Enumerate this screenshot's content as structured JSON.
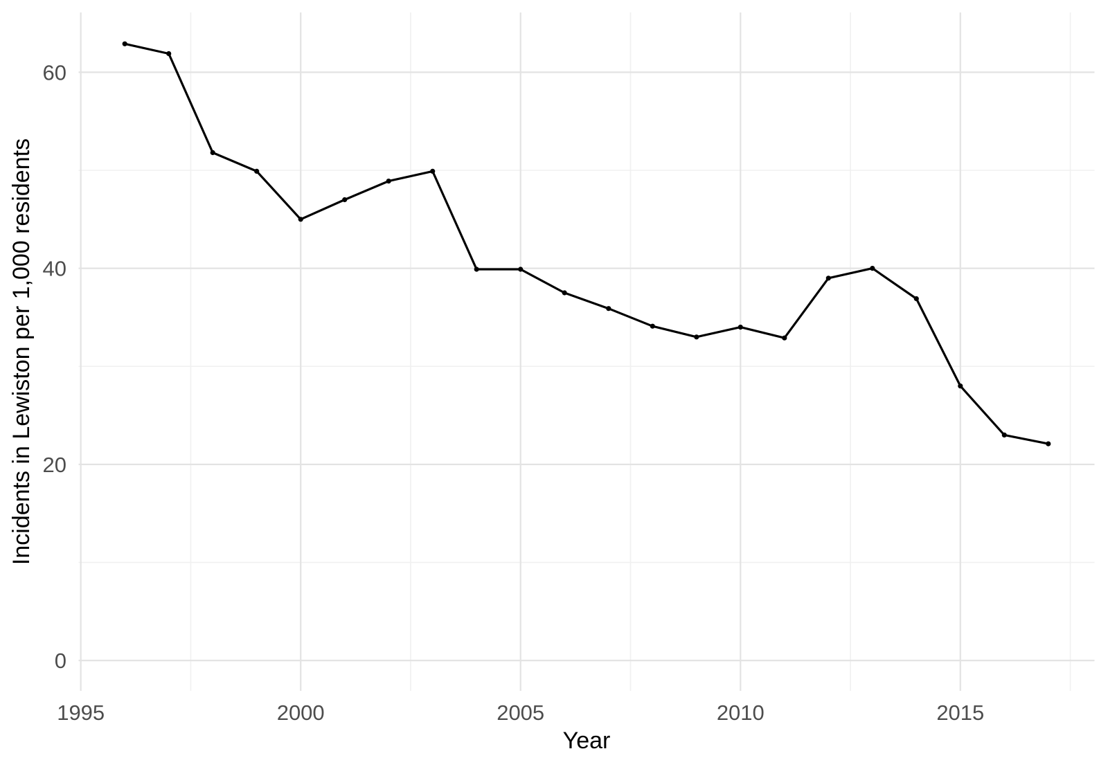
{
  "chart_data": {
    "type": "line",
    "title": "",
    "xlabel": "Year",
    "ylabel": "Incidents in Lewiston per 1,000 residents",
    "x": [
      1996,
      1997,
      1998,
      1999,
      2000,
      2001,
      2002,
      2003,
      2004,
      2005,
      2006,
      2007,
      2008,
      2009,
      2010,
      2011,
      2012,
      2013,
      2014,
      2015,
      2016,
      2017
    ],
    "y": [
      62.9,
      61.9,
      51.8,
      49.9,
      45.0,
      47.0,
      48.9,
      49.9,
      39.9,
      39.9,
      37.5,
      35.9,
      34.1,
      33.0,
      34.0,
      32.9,
      39.0,
      40.0,
      36.9,
      28.0,
      23.0,
      22.1
    ],
    "series_name": "Incidents per 1,000 residents",
    "x_ticks": [
      1995,
      2000,
      2005,
      2010,
      2015
    ],
    "x_tick_labels": [
      "1995",
      "2000",
      "2005",
      "2010",
      "2015"
    ],
    "x_minor_ticks": [
      1997.5,
      2002.5,
      2007.5,
      2012.5,
      2017.5
    ],
    "y_ticks": [
      0,
      20,
      40,
      60
    ],
    "y_tick_labels": [
      "0",
      "20",
      "40",
      "60"
    ],
    "y_minor_ticks": [
      10,
      30,
      50
    ],
    "x_domain": [
      1994.95,
      2018.05
    ],
    "y_domain": [
      -3.1,
      66.1
    ],
    "grid": "major+minor",
    "legend": "none",
    "marker": "filled-circle",
    "colors": {
      "line": "#000000",
      "point": "#000000",
      "grid_major": "#e3e3e3",
      "grid_minor": "#f0f0f0",
      "tick_label": "#4d4d4d",
      "axis_title": "#000000",
      "background": "#ffffff"
    }
  }
}
